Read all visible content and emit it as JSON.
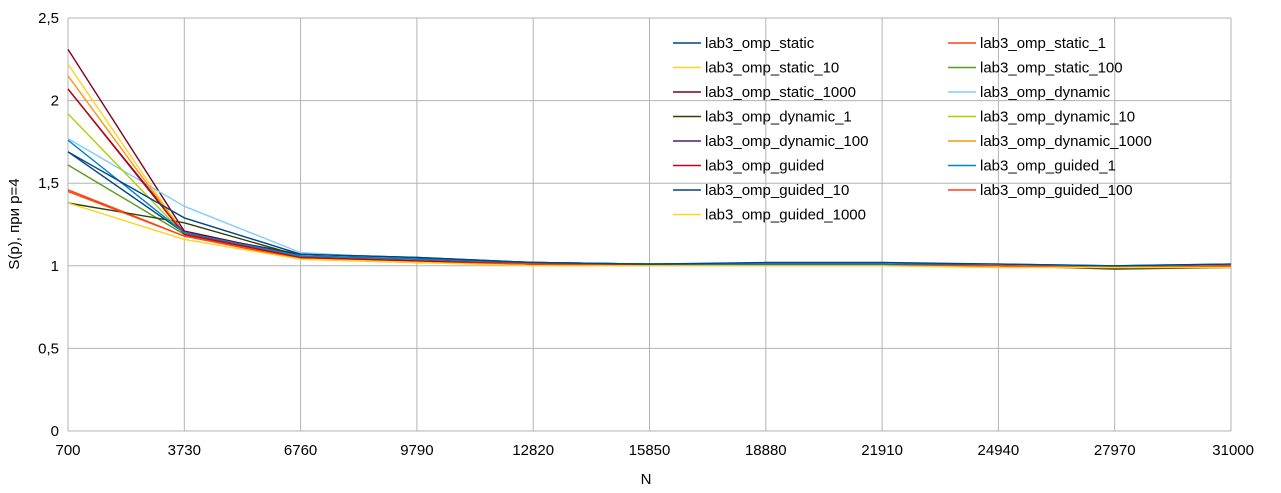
{
  "chart_data": {
    "type": "line",
    "title": "",
    "xlabel": "N",
    "ylabel": "S(p), при p=4",
    "x": [
      700,
      3730,
      6760,
      9790,
      12820,
      15850,
      18880,
      21910,
      24940,
      27970,
      31000
    ],
    "x_tick_labels": [
      "700",
      "3730",
      "6760",
      "9790",
      "12820",
      "15850",
      "18880",
      "21910",
      "24940",
      "27970",
      "31000"
    ],
    "ylim": [
      0,
      2.5
    ],
    "y_ticks": [
      0,
      0.5,
      1,
      1.5,
      2,
      2.5
    ],
    "y_tick_labels": [
      "0",
      "0,5",
      "1",
      "1,5",
      "2",
      "2,5"
    ],
    "grid": true,
    "legend_position": "top-right",
    "series": [
      {
        "name": "lab3_omp_static",
        "color": "#004586",
        "values": [
          1.69,
          1.2,
          1.07,
          1.05,
          1.02,
          1.01,
          1.01,
          1.01,
          1.0,
          0.99,
          1.0
        ]
      },
      {
        "name": "lab3_omp_static_1",
        "color": "#ff420e",
        "values": [
          1.46,
          1.18,
          1.05,
          1.03,
          1.01,
          1.0,
          1.0,
          1.0,
          1.0,
          0.99,
          1.0
        ]
      },
      {
        "name": "lab3_omp_static_10",
        "color": "#ffd320",
        "values": [
          2.22,
          1.19,
          1.05,
          1.03,
          1.01,
          1.0,
          1.0,
          1.0,
          1.0,
          0.99,
          1.0
        ]
      },
      {
        "name": "lab3_omp_static_100",
        "color": "#579d1c",
        "values": [
          1.61,
          1.19,
          1.05,
          1.03,
          1.01,
          1.0,
          1.0,
          1.0,
          1.0,
          0.99,
          1.0
        ]
      },
      {
        "name": "lab3_omp_static_1000",
        "color": "#7e0021",
        "values": [
          2.31,
          1.21,
          1.06,
          1.04,
          1.01,
          1.01,
          1.01,
          1.01,
          1.0,
          0.99,
          1.0
        ]
      },
      {
        "name": "lab3_omp_dynamic",
        "color": "#83caff",
        "values": [
          1.77,
          1.36,
          1.08,
          1.04,
          1.02,
          1.01,
          1.01,
          1.01,
          1.01,
          0.99,
          1.01
        ]
      },
      {
        "name": "lab3_omp_dynamic_1",
        "color": "#314004",
        "values": [
          1.38,
          1.26,
          1.06,
          1.04,
          1.02,
          1.01,
          1.01,
          1.01,
          1.0,
          0.98,
          0.99
        ]
      },
      {
        "name": "lab3_omp_dynamic_10",
        "color": "#aecf00",
        "values": [
          1.92,
          1.19,
          1.05,
          1.03,
          1.01,
          1.0,
          1.0,
          1.0,
          1.0,
          0.99,
          1.0
        ]
      },
      {
        "name": "lab3_omp_dynamic_100",
        "color": "#4b1f6f",
        "values": [
          2.07,
          1.2,
          1.05,
          1.03,
          1.01,
          1.0,
          1.0,
          1.0,
          1.0,
          0.99,
          1.0
        ]
      },
      {
        "name": "lab3_omp_dynamic_1000",
        "color": "#ff950e",
        "values": [
          2.15,
          1.19,
          1.05,
          1.03,
          1.01,
          1.0,
          1.0,
          1.0,
          1.0,
          0.99,
          1.0
        ]
      },
      {
        "name": "lab3_omp_guided",
        "color": "#c5000b",
        "values": [
          2.07,
          1.19,
          1.05,
          1.03,
          1.01,
          1.0,
          1.0,
          1.0,
          1.0,
          0.99,
          1.0
        ]
      },
      {
        "name": "lab3_omp_guided_1",
        "color": "#0084d1",
        "values": [
          1.76,
          1.2,
          1.06,
          1.04,
          1.02,
          1.01,
          1.01,
          1.01,
          1.01,
          1.0,
          1.01
        ]
      },
      {
        "name": "lab3_omp_guided_10",
        "color": "#004586",
        "values": [
          1.69,
          1.29,
          1.07,
          1.05,
          1.02,
          1.01,
          1.02,
          1.02,
          1.01,
          1.0,
          1.01
        ]
      },
      {
        "name": "lab3_omp_guided_100",
        "color": "#ff420e",
        "values": [
          1.45,
          1.18,
          1.04,
          1.02,
          1.01,
          1.0,
          1.0,
          1.0,
          1.0,
          0.99,
          1.0
        ]
      },
      {
        "name": "lab3_omp_guided_1000",
        "color": "#ffd320",
        "values": [
          1.38,
          1.16,
          1.04,
          1.02,
          1.0,
          1.0,
          1.0,
          1.0,
          0.99,
          0.99,
          0.99
        ]
      }
    ]
  }
}
